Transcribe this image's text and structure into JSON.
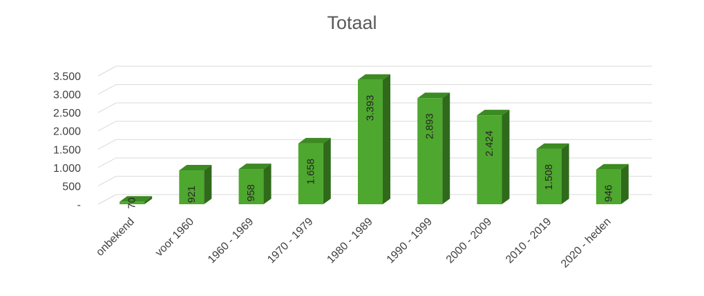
{
  "chart_data": {
    "type": "bar",
    "title": "Totaal",
    "categories": [
      "onbekend",
      "voor 1960",
      "1960 - 1969",
      "1970 - 1979",
      "1980 - 1989",
      "1990 - 1999",
      "2000 - 2009",
      "2010 - 2019",
      "2020 - heden"
    ],
    "values": [
      70,
      921,
      958,
      1658,
      3393,
      2893,
      2424,
      1508,
      946
    ],
    "data_labels": [
      "70",
      "921",
      "958",
      "1.658",
      "3.393",
      "2.893",
      "2.424",
      "1.508",
      "946"
    ],
    "y_ticks": [
      "-",
      "500",
      "1.000",
      "1.500",
      "2.000",
      "2.500",
      "3.000",
      "3.500"
    ],
    "ylim": [
      0,
      3500
    ],
    "grid": true,
    "legend": "none",
    "style": "3d-column",
    "colors": {
      "bar_front": "#4ea72e",
      "bar_side": "#2f6a1b",
      "bar_top": "#3c8a22",
      "grid": "#d9d9d9",
      "text": "#404040",
      "title": "#595959"
    }
  }
}
